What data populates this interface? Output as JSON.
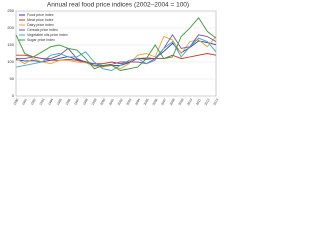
{
  "chart_data": {
    "type": "line",
    "title": "Annual real food price indices (2002–2004 = 100)",
    "x": [
      "1990",
      "1991",
      "1992",
      "1993",
      "1994",
      "1995",
      "1996",
      "1997",
      "1998",
      "1999",
      "2000",
      "2001",
      "2002",
      "2003",
      "2004",
      "2005",
      "2006",
      "2007",
      "2008",
      "2009",
      "2010",
      "2011",
      "2012",
      "2013"
    ],
    "series": [
      {
        "name": "Food price index",
        "color": "#2b3f9e",
        "values": [
          107,
          103,
          104,
          101,
          105,
          111,
          116,
          107,
          101,
          90,
          88,
          90,
          90,
          98,
          111,
          108,
          111,
          131,
          155,
          127,
          143,
          162,
          157,
          151
        ]
      },
      {
        "name": "Meat price index",
        "color": "#c0392b",
        "values": [
          120,
          120,
          115,
          110,
          105,
          105,
          108,
          105,
          98,
          95,
          95,
          100,
          95,
          100,
          110,
          112,
          110,
          110,
          120,
          110,
          115,
          120,
          125,
          120
        ]
      },
      {
        "name": "Dairy price index",
        "color": "#e8a33c",
        "values": [
          110,
          95,
          110,
          100,
          95,
          105,
          105,
          100,
          98,
          88,
          85,
          90,
          80,
          95,
          120,
          125,
          115,
          175,
          165,
          125,
          160,
          165,
          145,
          175
        ]
      },
      {
        "name": "Cereals price index",
        "color": "#7d4fa3",
        "values": [
          110,
          110,
          115,
          110,
          110,
          120,
          140,
          110,
          100,
          95,
          90,
          93,
          100,
          100,
          100,
          95,
          110,
          140,
          180,
          140,
          145,
          180,
          175,
          160
        ]
      },
      {
        "name": "Vegetable oils price index",
        "color": "#3fa6c9",
        "values": [
          85,
          90,
          95,
          100,
          120,
          125,
          115,
          115,
          130,
          100,
          80,
          75,
          90,
          105,
          110,
          95,
          105,
          140,
          160,
          115,
          145,
          170,
          160,
          130
        ]
      },
      {
        "name": "Sugar price index",
        "color": "#3a9a3a",
        "values": [
          180,
          125,
          115,
          130,
          145,
          150,
          140,
          135,
          110,
          80,
          90,
          90,
          75,
          80,
          85,
          110,
          150,
          110,
          115,
          175,
          200,
          230,
          190,
          170
        ]
      }
    ],
    "ylim": [
      0,
      250
    ],
    "yticks": [
      0,
      50,
      100,
      150,
      200,
      250
    ],
    "grid": true,
    "legend": "upper left"
  }
}
